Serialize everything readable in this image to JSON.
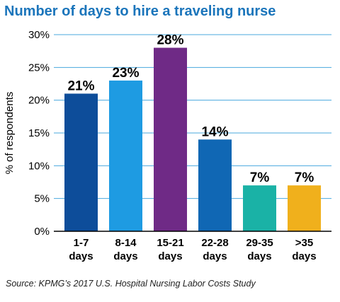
{
  "chart_data": {
    "type": "bar",
    "title": "Number of days to hire a traveling nurse",
    "ylabel": "% of respondents",
    "xlabel": "",
    "categories": [
      [
        "1-7",
        "days"
      ],
      [
        "8-14",
        "days"
      ],
      [
        "15-21",
        "days"
      ],
      [
        "22-28",
        "days"
      ],
      [
        "29-35",
        "days"
      ],
      [
        ">35",
        "days"
      ]
    ],
    "values": [
      21,
      23,
      28,
      14,
      7,
      7
    ],
    "data_labels": [
      "21%",
      "23%",
      "28%",
      "14%",
      "7%",
      "7%"
    ],
    "bar_colors": [
      "#0d4d9a",
      "#1e9be2",
      "#6f2a86",
      "#1067b4",
      "#1ab2a6",
      "#f0b01c"
    ],
    "ylim": [
      0,
      30
    ],
    "yticks": [
      0,
      5,
      10,
      15,
      20,
      25,
      30
    ],
    "ytick_labels": [
      "0%",
      "5%",
      "10%",
      "15%",
      "20%",
      "25%",
      "30%"
    ],
    "grid": true,
    "grid_color": "#4aa8de",
    "legend": "none"
  },
  "source": "Source: KPMG’s 2017 U.S. Hospital Nursing Labor Costs Study",
  "colors": {
    "title": "#1b75bb",
    "axis_text": "#000000",
    "source_text": "#222222"
  }
}
